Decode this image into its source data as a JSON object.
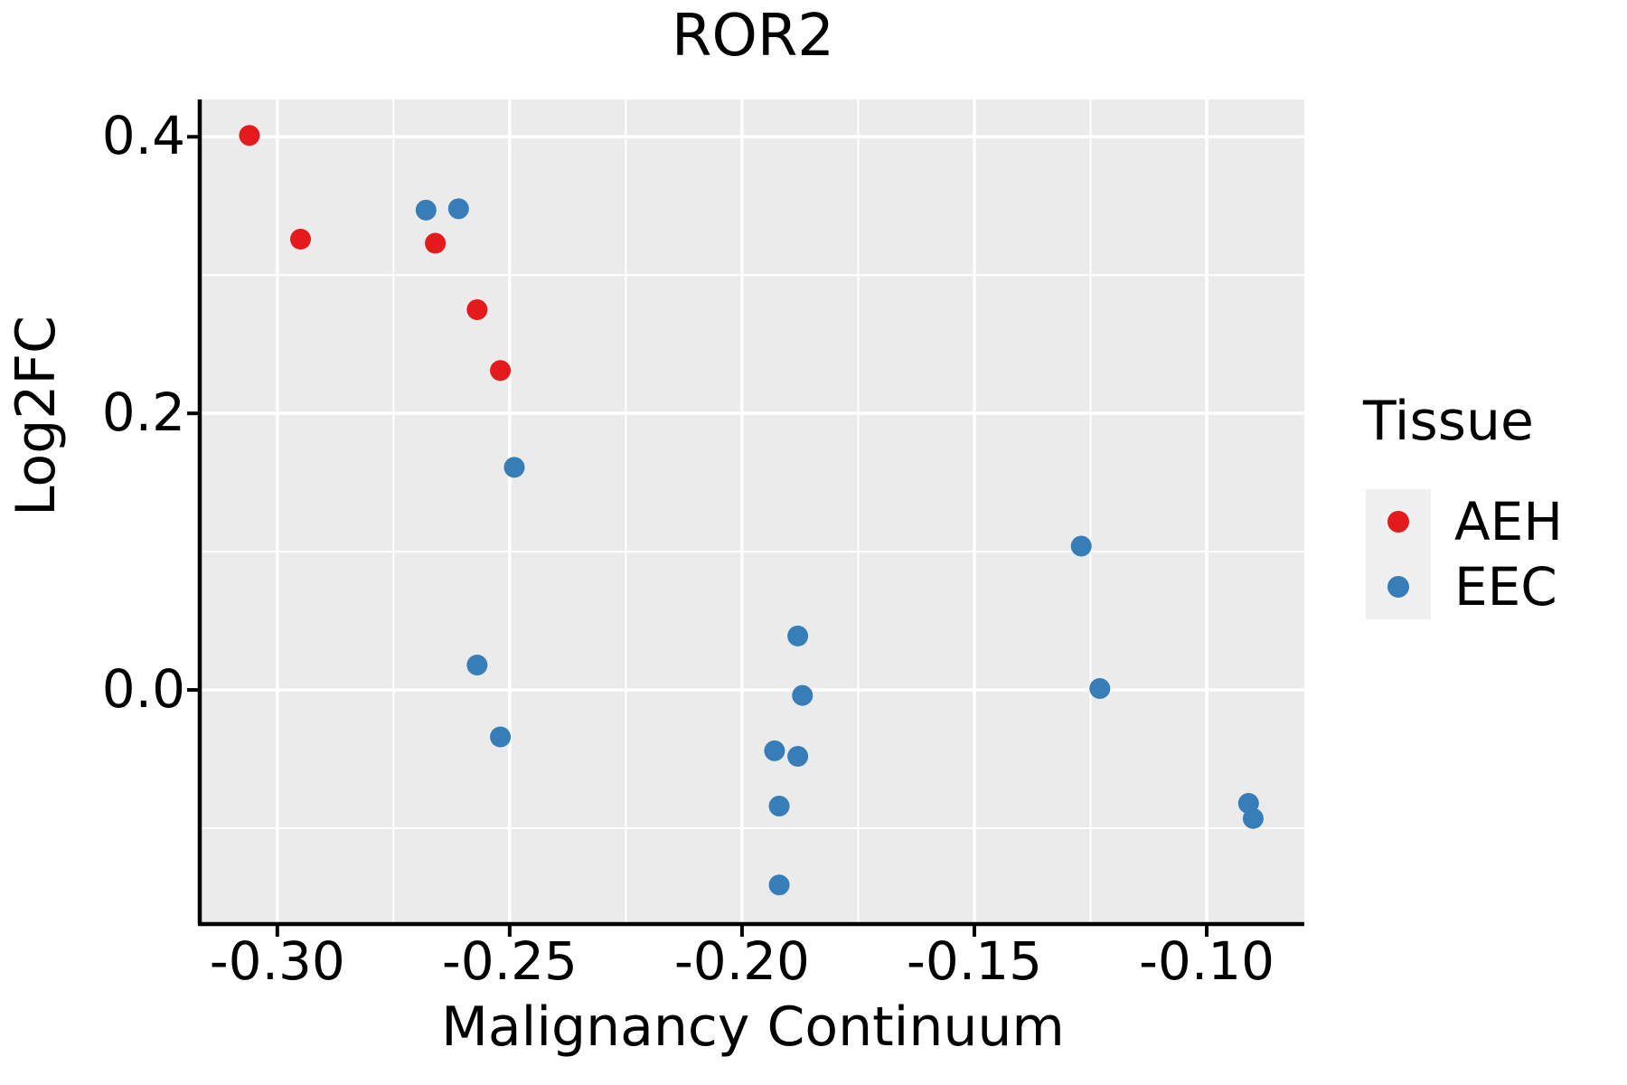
{
  "title": "ROR2",
  "colors": {
    "panel_background": "#ebebeb",
    "gridline": "#ffffff",
    "axis_line": "#000000",
    "text": "#000000",
    "legend_key_background": "#f0f0f0",
    "aeh_red": "#e41a1c",
    "eec_blue": "#377eb8"
  },
  "chart_data": {
    "type": "scatter",
    "title": "ROR2",
    "xlabel": "Malignancy Continuum",
    "ylabel": "Log2FC",
    "xlim": [
      -0.3163,
      -0.079
    ],
    "ylim": [
      -0.168,
      0.427
    ],
    "grid": "on",
    "xticks": {
      "labels": [
        "-0.30",
        "-0.25",
        "-0.20",
        "-0.15",
        "-0.10"
      ],
      "values": [
        -0.3,
        -0.25,
        -0.2,
        -0.15,
        -0.1
      ],
      "minor": [
        -0.275,
        -0.225,
        -0.175,
        -0.125
      ]
    },
    "yticks": {
      "labels": [
        "0.0",
        "0.2",
        "0.4"
      ],
      "values": [
        0.0,
        0.2,
        0.4
      ],
      "minor": [
        -0.1,
        0.1,
        0.3
      ]
    },
    "legend": {
      "title": "Tissue",
      "position": "right",
      "items": [
        {
          "label": "AEH",
          "color": "#e41a1c"
        },
        {
          "label": "EEC",
          "color": "#377eb8"
        }
      ]
    },
    "series": [
      {
        "name": "AEH",
        "color": "#e41a1c",
        "points": [
          [
            -0.306,
            0.401
          ],
          [
            -0.295,
            0.326
          ],
          [
            -0.266,
            0.323
          ],
          [
            -0.257,
            0.275
          ],
          [
            -0.252,
            0.231
          ]
        ]
      },
      {
        "name": "EEC",
        "color": "#377eb8",
        "points": [
          [
            -0.268,
            0.347
          ],
          [
            -0.261,
            0.348
          ],
          [
            -0.249,
            0.161
          ],
          [
            -0.257,
            0.018
          ],
          [
            -0.252,
            -0.034
          ],
          [
            -0.188,
            0.039
          ],
          [
            -0.187,
            -0.004
          ],
          [
            -0.193,
            -0.044
          ],
          [
            -0.188,
            -0.048
          ],
          [
            -0.192,
            -0.084
          ],
          [
            -0.192,
            -0.141
          ],
          [
            -0.127,
            0.104
          ],
          [
            -0.123,
            0.001
          ],
          [
            -0.091,
            -0.082
          ],
          [
            -0.09,
            -0.093
          ]
        ]
      }
    ]
  }
}
